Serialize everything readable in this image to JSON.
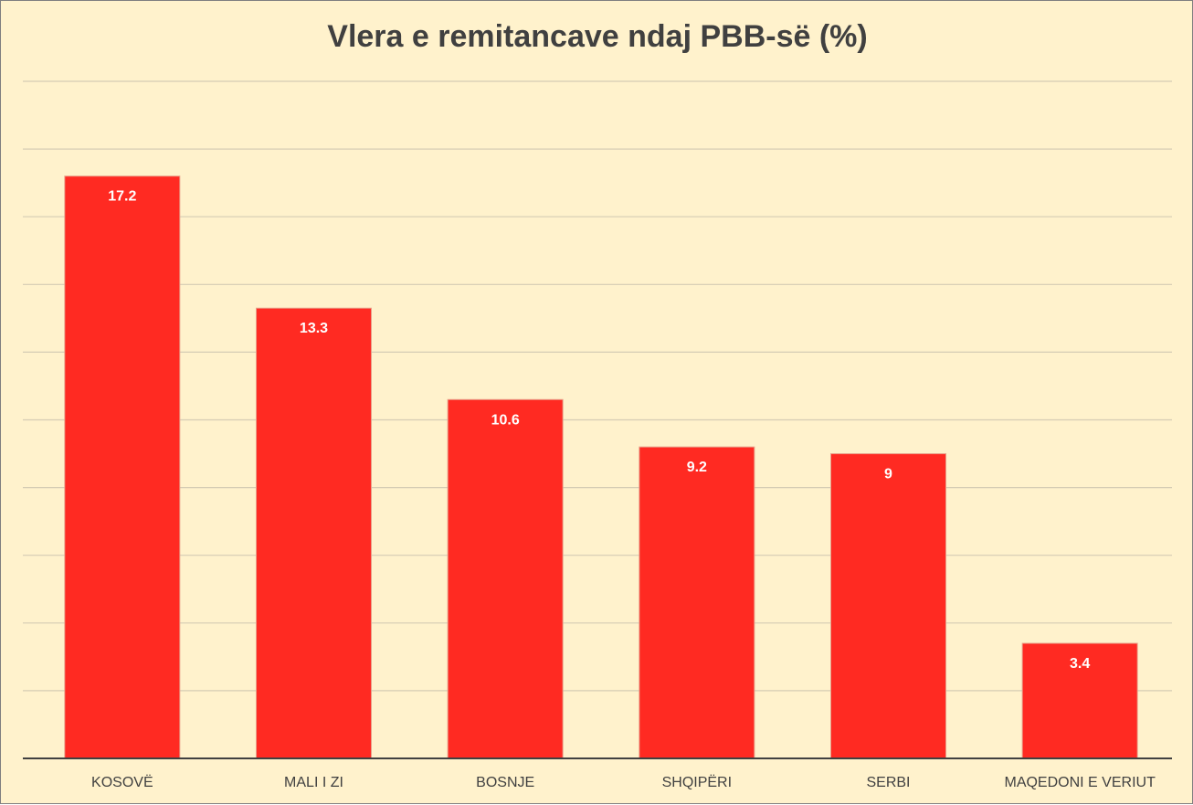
{
  "chart_data": {
    "type": "bar",
    "title": "Vlera e remitancave ndaj PBB-së (%)",
    "categories": [
      "KOSOVË",
      "MALI I ZI",
      "BOSNJE",
      "SHQIPËRI",
      "SERBI",
      "MAQEDONI E VERIUT"
    ],
    "values": [
      17.2,
      13.3,
      10.6,
      9.2,
      9,
      3.4
    ],
    "data_labels": [
      "17.2",
      "13.3",
      "10.6",
      "9.2",
      "9",
      "3.4"
    ],
    "xlabel": "",
    "ylabel": "",
    "ylim": [
      0,
      20
    ],
    "y_tick_step": 2,
    "y_tick_labels_visible": false,
    "grid": true,
    "legend": "none",
    "colors": {
      "bar": "#ff2a22",
      "bar_edge": "#e8a08a",
      "background": "#fff2cc",
      "gridline": "#d5ccb4",
      "axis": "#404040",
      "title": "#404040"
    }
  }
}
